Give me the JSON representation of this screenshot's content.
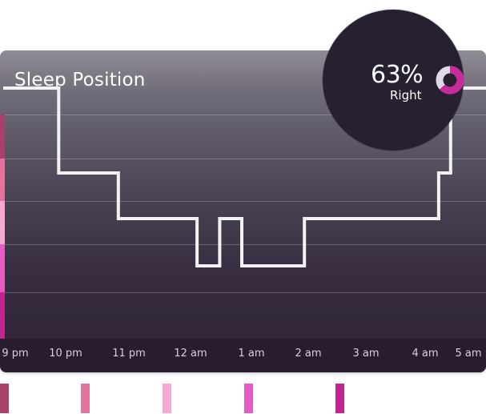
{
  "card": {
    "title": "Sleep Position"
  },
  "summary": {
    "percent_text": "63%",
    "side_text": "Right",
    "right_fraction": 0.63,
    "ring_color_primary": "#c62a9d",
    "ring_color_secondary": "#e3d9e6"
  },
  "chart_data": {
    "type": "line",
    "title": "Sleep Position",
    "x_ticks": [
      "9 pm",
      "10 pm",
      "11 pm",
      "12 am",
      "1 am",
      "2 am",
      "3 am",
      "4 am",
      "5 am"
    ],
    "position_levels": 5,
    "series": [
      {
        "values_hours": [
          [
            21.0,
            1
          ],
          [
            21.93,
            1
          ],
          [
            21.93,
            2
          ],
          [
            22.93,
            2
          ],
          [
            22.93,
            3
          ],
          [
            24.25,
            3
          ],
          [
            24.25,
            4
          ],
          [
            24.63,
            4
          ],
          [
            24.63,
            3
          ],
          [
            25.0,
            3
          ],
          [
            25.0,
            4
          ],
          [
            26.05,
            4
          ],
          [
            26.05,
            3
          ],
          [
            28.3,
            3
          ],
          [
            28.3,
            2
          ],
          [
            28.5,
            2
          ],
          [
            28.5,
            1
          ],
          [
            29.43,
            1
          ]
        ]
      }
    ],
    "level_colors": [
      "#a8406c",
      "#e2739e",
      "#f4a8d3",
      "#e55dc3",
      "#c2258f"
    ],
    "grid": true,
    "line_color": "#f2f2f2"
  },
  "bottom_legend": {
    "swatch_colors": [
      "#a8406c",
      "#e2739e",
      "#f4a8d3",
      "#e55dc3",
      "#c2258f"
    ]
  }
}
